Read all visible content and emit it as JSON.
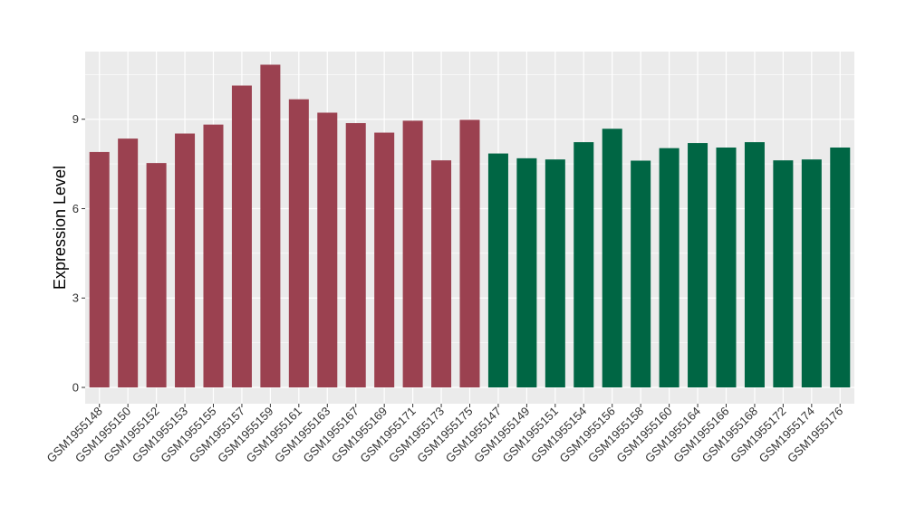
{
  "chart_data": {
    "type": "bar",
    "title": "",
    "xlabel": "",
    "ylabel": "Expression Level",
    "ylim": [
      0,
      11.3
    ],
    "yticks": [
      0,
      3,
      6,
      9
    ],
    "grid": true,
    "legend": "none",
    "colors": {
      "group1": "#9b4150",
      "group2": "#006644",
      "panel": "#ebebeb",
      "grid": "#ffffff"
    },
    "categories": [
      "GSM1955148",
      "GSM1955150",
      "GSM1955152",
      "GSM1955153",
      "GSM1955155",
      "GSM1955157",
      "GSM1955159",
      "GSM1955161",
      "GSM1955163",
      "GSM1955167",
      "GSM1955169",
      "GSM1955171",
      "GSM1955173",
      "GSM1955175",
      "GSM1955147",
      "GSM1955149",
      "GSM1955151",
      "GSM1955154",
      "GSM1955156",
      "GSM1955158",
      "GSM1955160",
      "GSM1955164",
      "GSM1955166",
      "GSM1955168",
      "GSM1955172",
      "GSM1955174",
      "GSM1955176"
    ],
    "values": [
      7.9,
      8.35,
      7.53,
      8.52,
      8.82,
      10.13,
      10.83,
      9.67,
      9.22,
      8.87,
      8.55,
      8.95,
      7.62,
      8.98,
      7.85,
      7.69,
      7.65,
      8.23,
      8.68,
      7.61,
      8.03,
      8.2,
      8.05,
      8.23,
      7.62,
      7.65,
      8.05
    ],
    "groups": [
      "group1",
      "group1",
      "group1",
      "group1",
      "group1",
      "group1",
      "group1",
      "group1",
      "group1",
      "group1",
      "group1",
      "group1",
      "group1",
      "group1",
      "group2",
      "group2",
      "group2",
      "group2",
      "group2",
      "group2",
      "group2",
      "group2",
      "group2",
      "group2",
      "group2",
      "group2",
      "group2"
    ]
  }
}
